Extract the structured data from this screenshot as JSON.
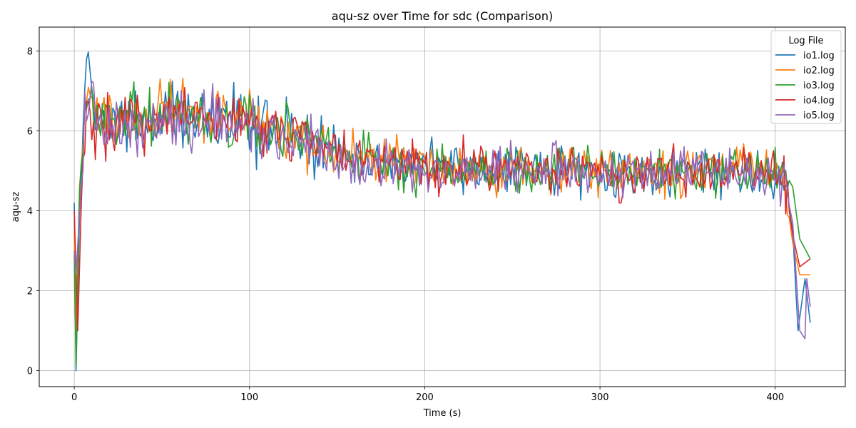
{
  "chart_data": {
    "type": "line",
    "title": "aqu-sz over Time for sdc (Comparison)",
    "xlabel": "Time (s)",
    "ylabel": "aqu-sz",
    "xlim": [
      -20,
      440
    ],
    "ylim": [
      -0.4,
      8.6
    ],
    "xticks": [
      0,
      100,
      200,
      300,
      400
    ],
    "yticks": [
      0,
      2,
      4,
      6,
      8
    ],
    "grid": true,
    "legend": {
      "title": "Log File",
      "position": "top-right"
    },
    "x_range": [
      0,
      420
    ],
    "series": [
      {
        "name": "io1.log",
        "color": "#1f77b4",
        "anchors": [
          [
            0,
            4.2
          ],
          [
            1,
            0.0
          ],
          [
            3,
            3.9
          ],
          [
            6,
            6.5
          ],
          [
            8,
            8.1
          ],
          [
            12,
            6.3
          ],
          [
            30,
            6.2
          ],
          [
            60,
            6.4
          ],
          [
            100,
            6.1
          ],
          [
            120,
            6.0
          ],
          [
            140,
            5.6
          ],
          [
            160,
            5.3
          ],
          [
            200,
            5.1
          ],
          [
            260,
            5.0
          ],
          [
            330,
            5.0
          ],
          [
            380,
            5.0
          ],
          [
            405,
            4.8
          ],
          [
            410,
            3.5
          ],
          [
            413,
            1.0
          ],
          [
            417,
            2.3
          ],
          [
            420,
            1.2
          ]
        ]
      },
      {
        "name": "io2.log",
        "color": "#ff7f0e",
        "anchors": [
          [
            0,
            3.5
          ],
          [
            1,
            1.1
          ],
          [
            3,
            4.6
          ],
          [
            6,
            6.4
          ],
          [
            8,
            7.5
          ],
          [
            12,
            6.2
          ],
          [
            30,
            6.3
          ],
          [
            60,
            6.5
          ],
          [
            80,
            6.6
          ],
          [
            100,
            6.2
          ],
          [
            120,
            6.0
          ],
          [
            140,
            5.7
          ],
          [
            160,
            5.3
          ],
          [
            200,
            5.1
          ],
          [
            260,
            5.0
          ],
          [
            330,
            5.0
          ],
          [
            380,
            5.1
          ],
          [
            405,
            4.8
          ],
          [
            410,
            3.2
          ],
          [
            414,
            2.4
          ],
          [
            420,
            2.4
          ]
        ]
      },
      {
        "name": "io3.log",
        "color": "#2ca02c",
        "anchors": [
          [
            0,
            2.9
          ],
          [
            1,
            0.1
          ],
          [
            3,
            4.5
          ],
          [
            6,
            6.5
          ],
          [
            8,
            7.2
          ],
          [
            12,
            6.2
          ],
          [
            30,
            6.3
          ],
          [
            60,
            6.4
          ],
          [
            100,
            6.1
          ],
          [
            120,
            6.0
          ],
          [
            140,
            5.8
          ],
          [
            160,
            5.3
          ],
          [
            200,
            5.0
          ],
          [
            260,
            5.0
          ],
          [
            330,
            5.0
          ],
          [
            380,
            5.0
          ],
          [
            405,
            5.0
          ],
          [
            410,
            4.6
          ],
          [
            414,
            3.3
          ],
          [
            420,
            2.8
          ]
        ]
      },
      {
        "name": "io4.log",
        "color": "#d62728",
        "anchors": [
          [
            0,
            4.0
          ],
          [
            1,
            2.4
          ],
          [
            2,
            1.0
          ],
          [
            4,
            4.2
          ],
          [
            6,
            5.8
          ],
          [
            8,
            6.7
          ],
          [
            12,
            6.0
          ],
          [
            30,
            6.3
          ],
          [
            60,
            6.5
          ],
          [
            100,
            6.2
          ],
          [
            120,
            6.0
          ],
          [
            140,
            5.7
          ],
          [
            160,
            5.3
          ],
          [
            200,
            5.1
          ],
          [
            260,
            5.0
          ],
          [
            330,
            5.0
          ],
          [
            380,
            5.0
          ],
          [
            405,
            4.9
          ],
          [
            410,
            3.4
          ],
          [
            414,
            2.6
          ],
          [
            420,
            2.8
          ]
        ]
      },
      {
        "name": "io5.log",
        "color": "#9467bd",
        "anchors": [
          [
            0,
            3.0
          ],
          [
            1,
            2.4
          ],
          [
            3,
            3.9
          ],
          [
            6,
            6.2
          ],
          [
            8,
            7.1
          ],
          [
            12,
            6.1
          ],
          [
            30,
            6.2
          ],
          [
            60,
            6.3
          ],
          [
            100,
            6.1
          ],
          [
            120,
            5.9
          ],
          [
            140,
            5.6
          ],
          [
            160,
            5.2
          ],
          [
            200,
            5.0
          ],
          [
            260,
            5.0
          ],
          [
            330,
            5.0
          ],
          [
            380,
            5.0
          ],
          [
            405,
            4.8
          ],
          [
            410,
            3.7
          ],
          [
            414,
            1.0
          ],
          [
            417,
            0.8
          ],
          [
            418,
            2.3
          ],
          [
            420,
            1.6
          ]
        ]
      }
    ]
  }
}
